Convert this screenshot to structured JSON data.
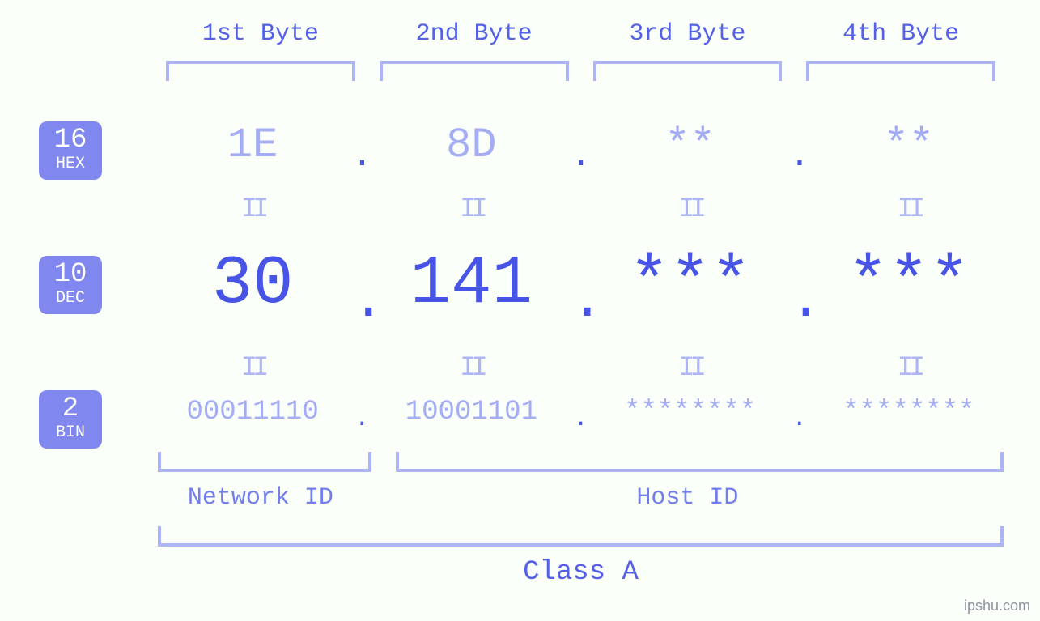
{
  "colors": {
    "background": "#fafffa",
    "text_primary": "#4854e6",
    "text_muted": "#a3acf5",
    "bracket": "#aeb5f7",
    "badge_bg": "#8088f0",
    "badge_fg": "#ffffff",
    "label": "#5560e8",
    "watermark": "#8f95a0"
  },
  "typography": {
    "font_family": "Courier New, monospace",
    "byte_label_fontsize": 30,
    "hex_fontsize": 52,
    "dec_fontsize": 84,
    "bin_fontsize": 34,
    "nh_label_fontsize": 30,
    "class_label_fontsize": 34,
    "badge_num_fontsize": 34,
    "badge_txt_fontsize": 20
  },
  "byte_labels": [
    "1st Byte",
    "2nd Byte",
    "3rd Byte",
    "4th Byte"
  ],
  "badges": {
    "hex": {
      "base": "16",
      "abbr": "HEX"
    },
    "dec": {
      "base": "10",
      "abbr": "DEC"
    },
    "bin": {
      "base": "2",
      "abbr": "BIN"
    }
  },
  "values": {
    "hex": [
      "1E",
      "8D",
      "**",
      "**"
    ],
    "dec": [
      "30",
      "141",
      "***",
      "***"
    ],
    "bin": [
      "00011110",
      "10001101",
      "********",
      "********"
    ]
  },
  "separator": ".",
  "equals_glyph": "II",
  "network_host": {
    "network_label": "Network ID",
    "host_label": "Host ID",
    "network_bytes": 1,
    "host_bytes": 3
  },
  "class_label": "Class A",
  "watermark": "ipshu.com"
}
